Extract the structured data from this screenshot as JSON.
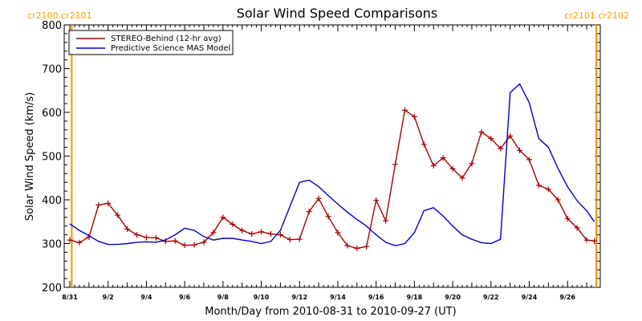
{
  "chart_data": {
    "type": "line",
    "title": "Solar Wind Speed Comparisons",
    "xlabel": "Month/Day from 2010-08-31 to 2010-09-27 (UT)",
    "ylabel": "Solar Wind Speed (km/s)",
    "xlim": [
      0,
      27.5
    ],
    "ylim": [
      200,
      800
    ],
    "yticks": [
      200,
      300,
      400,
      500,
      600,
      700,
      800
    ],
    "xtick_labels": [
      {
        "x": 0,
        "label": "8/31"
      },
      {
        "x": 2,
        "label": "9/2"
      },
      {
        "x": 4,
        "label": "9/4"
      },
      {
        "x": 6,
        "label": "9/6"
      },
      {
        "x": 8,
        "label": "9/8"
      },
      {
        "x": 10,
        "label": "9/10"
      },
      {
        "x": 12,
        "label": "9/12"
      },
      {
        "x": 14,
        "label": "9/14"
      },
      {
        "x": 16,
        "label": "9/16"
      },
      {
        "x": 18,
        "label": "9/18"
      },
      {
        "x": 20,
        "label": "9/20"
      },
      {
        "x": 22,
        "label": "9/22"
      },
      {
        "x": 24,
        "label": "9/24"
      },
      {
        "x": 26,
        "label": "9/26"
      }
    ],
    "grid": false,
    "legend": "top-left",
    "carrington_markers": [
      {
        "x": 0.1,
        "label": "cr2100 cr2101",
        "side": "left",
        "color": "#ff9900"
      },
      {
        "x": 27.5,
        "label": "cr2101 cr2102",
        "side": "right",
        "color": "#ff9900"
      }
    ],
    "series": [
      {
        "name": "STEREO-Behind (12-hr avg)",
        "color": "#aa0000",
        "markers": true,
        "x": [
          0.0,
          0.5,
          1.0,
          1.5,
          2.0,
          2.5,
          3.0,
          3.5,
          4.0,
          4.5,
          5.0,
          5.5,
          6.0,
          6.5,
          7.0,
          7.5,
          8.0,
          8.5,
          9.0,
          9.5,
          10.0,
          10.5,
          11.0,
          11.5,
          12.0,
          12.5,
          13.0,
          13.5,
          14.0,
          14.5,
          15.0,
          15.5,
          16.0,
          16.5,
          17.0,
          17.5,
          18.0,
          18.5,
          19.0,
          19.5,
          20.0,
          20.5,
          21.0,
          21.5,
          22.0,
          22.5,
          23.0,
          23.5,
          24.0,
          24.5,
          25.0,
          25.5,
          26.0,
          26.5,
          27.0,
          27.4
        ],
        "y": [
          308,
          302,
          315,
          388,
          392,
          365,
          333,
          320,
          314,
          313,
          305,
          306,
          296,
          297,
          303,
          325,
          360,
          344,
          330,
          322,
          327,
          322,
          320,
          309,
          310,
          373,
          403,
          362,
          325,
          295,
          289,
          293,
          399,
          352,
          481,
          605,
          590,
          527,
          478,
          496,
          471,
          450,
          483,
          555,
          540,
          517,
          546,
          513,
          492,
          433,
          424,
          400,
          357,
          336,
          308,
          306
        ]
      },
      {
        "name": "Predictive Science MAS Model",
        "color": "#0000cc",
        "markers": false,
        "x": [
          0.0,
          0.5,
          1.0,
          1.5,
          2.0,
          2.5,
          3.0,
          3.5,
          4.0,
          4.5,
          5.0,
          5.5,
          6.0,
          6.5,
          7.0,
          7.5,
          8.0,
          8.5,
          9.0,
          9.5,
          10.0,
          10.5,
          11.0,
          11.5,
          12.0,
          12.5,
          13.0,
          13.5,
          14.0,
          14.5,
          15.0,
          15.5,
          16.0,
          16.5,
          17.0,
          17.5,
          18.0,
          18.5,
          19.0,
          19.5,
          20.0,
          20.5,
          21.0,
          21.5,
          22.0,
          22.5,
          23.0,
          23.5,
          24.0,
          24.5,
          25.0,
          25.5,
          26.0,
          26.5,
          27.0,
          27.4
        ],
        "y": [
          345,
          330,
          318,
          305,
          298,
          298,
          300,
          303,
          304,
          303,
          308,
          320,
          335,
          330,
          316,
          308,
          312,
          312,
          308,
          305,
          300,
          305,
          330,
          385,
          440,
          445,
          430,
          410,
          390,
          372,
          355,
          340,
          320,
          303,
          295,
          300,
          325,
          375,
          382,
          363,
          340,
          320,
          310,
          302,
          300,
          310,
          645,
          665,
          622,
          540,
          520,
          472,
          430,
          398,
          375,
          350
        ]
      }
    ]
  }
}
